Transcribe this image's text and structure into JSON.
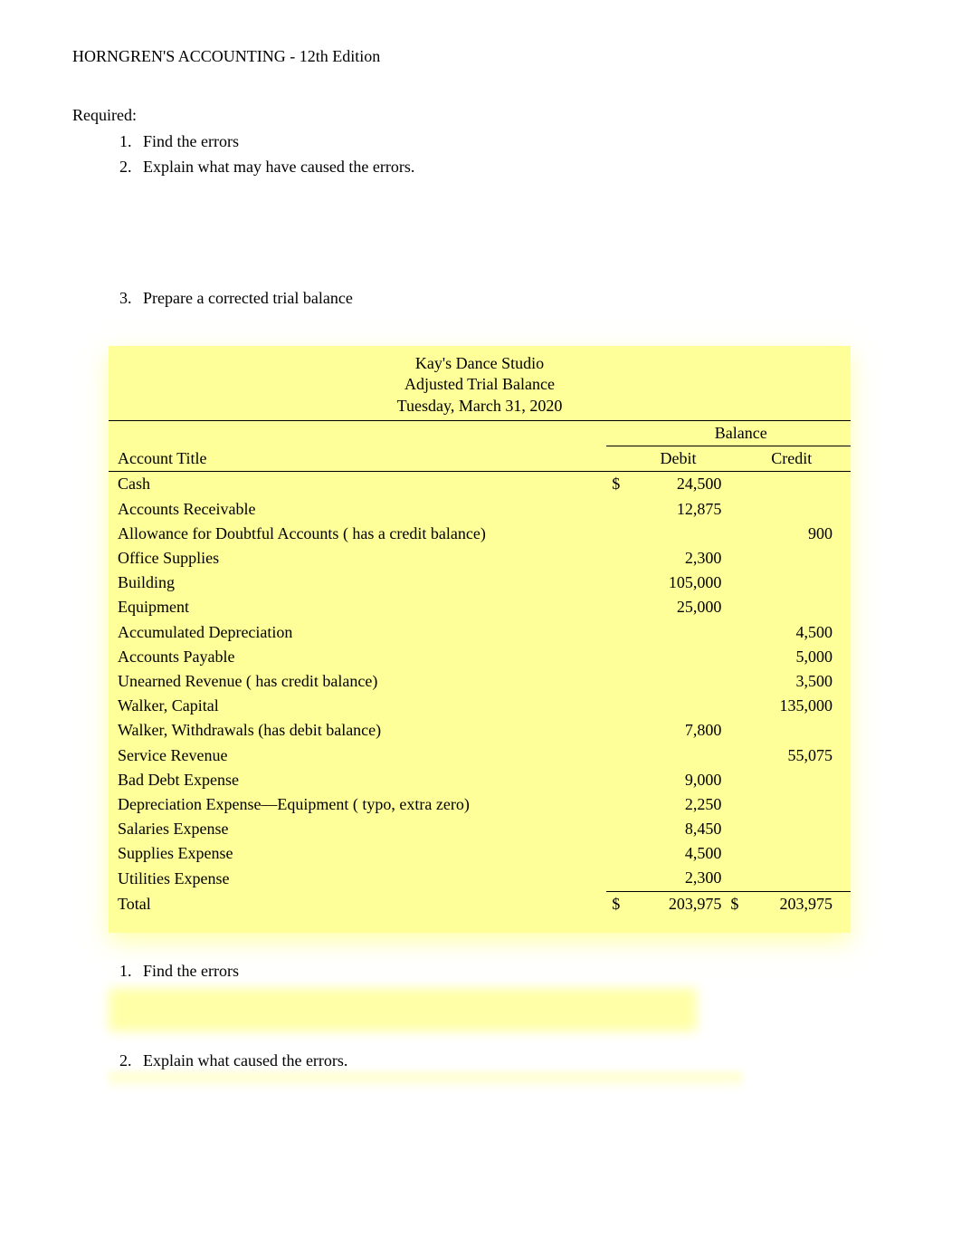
{
  "header": {
    "title": "HORNGREN'S ACCOUNTING - 12th Edition"
  },
  "required": {
    "label": "Required:",
    "items": [
      "Find the errors",
      "Explain what may have caused the errors."
    ]
  },
  "prepare": {
    "start": 3,
    "items": [
      "Prepare a corrected trial balance"
    ]
  },
  "trial_balance": {
    "title_line1": "Kay's Dance Studio",
    "title_line2": "Adjusted Trial Balance",
    "title_line3": "Tuesday, March 31, 2020",
    "balance_label": "Balance",
    "account_title_label": "Account Title",
    "debit_label": "Debit",
    "credit_label": "Credit",
    "currency": "$",
    "header_colors": {
      "background": "#ffff99",
      "text": "#000000",
      "underline": "#000000"
    },
    "rows": [
      {
        "title": "Cash",
        "debit": "24,500",
        "credit": "",
        "show_currency": true
      },
      {
        "title": "Accounts Receivable",
        "debit": "12,875",
        "credit": ""
      },
      {
        "title": "Allowance for Doubtful Accounts ( has a credit balance)",
        "debit": "",
        "credit": "900"
      },
      {
        "title": "Office Supplies",
        "debit": "2,300",
        "credit": ""
      },
      {
        "title": "Building",
        "debit": "105,000",
        "credit": ""
      },
      {
        "title": "Equipment",
        "debit": "25,000",
        "credit": ""
      },
      {
        "title": "Accumulated Depreciation",
        "debit": "",
        "credit": "4,500"
      },
      {
        "title": "Accounts Payable",
        "debit": "",
        "credit": "5,000"
      },
      {
        "title": "Unearned Revenue ( has credit balance)",
        "debit": "",
        "credit": "3,500"
      },
      {
        "title": "Walker, Capital",
        "debit": "",
        "credit": "135,000"
      },
      {
        "title": "Walker, Withdrawals (has debit balance)",
        "debit": "7,800",
        "credit": ""
      },
      {
        "title": "Service Revenue",
        "debit": "",
        "credit": "55,075"
      },
      {
        "title": "Bad Debt Expense",
        "debit": "9,000",
        "credit": ""
      },
      {
        "title": "Depreciation Expense—Equipment ( typo, extra zero)",
        "debit": "2,250",
        "credit": ""
      },
      {
        "title": "Salaries Expense",
        "debit": "8,450",
        "credit": ""
      },
      {
        "title": "Supplies Expense",
        "debit": "4,500",
        "credit": ""
      },
      {
        "title": "Utilities Expense",
        "debit": "2,300",
        "credit": ""
      }
    ],
    "total": {
      "label": "Total",
      "debit": "203,975",
      "credit": "203,975",
      "show_currency": true
    }
  },
  "find_errors": {
    "start": 1,
    "label": "Find the errors"
  },
  "explain": {
    "start": 2,
    "label": "Explain what caused the errors."
  }
}
